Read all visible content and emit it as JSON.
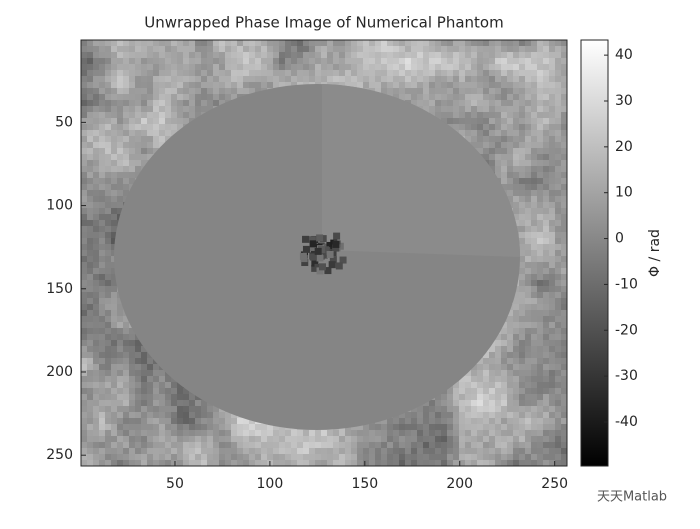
{
  "chart_data": {
    "type": "image",
    "title": "Unwrapped Phase Image of Numerical Phantom",
    "colormap": "gray",
    "xlim": [
      0.5,
      256.5
    ],
    "ylim": [
      0.5,
      256.5
    ],
    "y_reversed": true,
    "xticks": [
      50,
      100,
      150,
      200,
      250
    ],
    "yticks": [
      50,
      100,
      150,
      200,
      250
    ],
    "colorbar": {
      "label": "Φ / rad",
      "clim": [
        -49.6,
        43.3
      ],
      "ticks": [
        -40,
        -30,
        -20,
        -10,
        0,
        10,
        20,
        30,
        40
      ]
    }
  },
  "watermark": "天天Matlab"
}
